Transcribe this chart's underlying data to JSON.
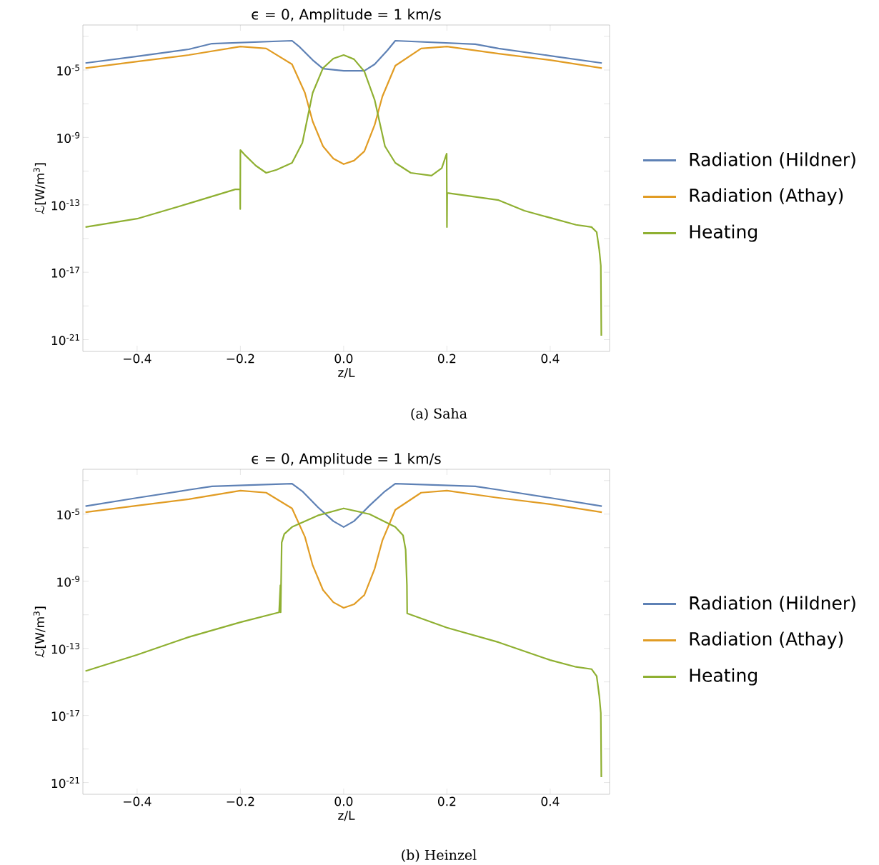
{
  "chart_data": [
    {
      "type": "line",
      "title": "ϵ = 0, Amplitude = 1 km/s",
      "xlabel": "z/L",
      "ylabel": "ℒ[W/m$^{3}$]",
      "log": "y",
      "legend": "right",
      "xlim": [
        -0.505,
        0.515
      ],
      "ylim": [
        2e-22,
        0.0047
      ],
      "xticks": [
        {
          "value": -0.4,
          "label": "−0.4"
        },
        {
          "value": -0.2,
          "label": "−0.2"
        },
        {
          "value": 0,
          "label": "0.0"
        },
        {
          "value": 0.2,
          "label": "0.2"
        },
        {
          "value": 0.4,
          "label": "0.4"
        }
      ],
      "yticks": [
        {
          "value": 1e-21,
          "label": "10$^{-21}$"
        },
        {
          "value": 1e-19,
          "label": null
        },
        {
          "value": 1e-17,
          "label": "10$^{-17}$"
        },
        {
          "value": 1e-15,
          "label": null
        },
        {
          "value": 1e-13,
          "label": "10$^{-13}$"
        },
        {
          "value": 1e-11,
          "label": null
        },
        {
          "value": 1e-09,
          "label": "10$^{-9}$"
        },
        {
          "value": 1e-07,
          "label": null
        },
        {
          "value": 1e-05,
          "label": "10$^{-5}$"
        },
        {
          "value": 0.001,
          "label": null
        }
      ],
      "annotations": [
        "(a) Saha"
      ],
      "series": [
        {
          "name": "Radiation (Hildner)",
          "color": "#5e81b5",
          "x": [
            -0.5,
            -0.4,
            -0.3,
            -0.255,
            -0.1,
            -0.085,
            -0.06,
            -0.04,
            0,
            0.04,
            0.06,
            0.085,
            0.1,
            0.255,
            0.3,
            0.4,
            0.5
          ],
          "values": [
            2.6e-05,
            6.5e-05,
            0.00017,
            0.00037,
            0.00055,
            0.00023,
            3.9e-05,
            1.2e-05,
            9e-06,
            9e-06,
            2.2e-05,
            0.00015,
            0.00055,
            0.00034,
            0.00019,
            7e-05,
            2.6e-05
          ]
        },
        {
          "name": "Radiation (Athay)",
          "color": "#e19c24",
          "x": [
            -0.5,
            -0.4,
            -0.3,
            -0.2,
            -0.15,
            -0.1,
            -0.075,
            -0.06,
            -0.04,
            -0.02,
            0,
            0.02,
            0.04,
            0.06,
            0.075,
            0.1,
            0.15,
            0.2,
            0.3,
            0.4,
            0.5
          ],
          "values": [
            1.3e-05,
            3.2e-05,
            7.8e-05,
            0.00025,
            0.00019,
            2.2e-05,
            4.4e-07,
            8.9e-09,
            3e-10,
            5.6e-11,
            2.6e-11,
            4.2e-11,
            1.5e-10,
            5.5e-09,
            2.7e-07,
            1.8e-05,
            0.00019,
            0.00025,
            9.3e-05,
            3.9e-05,
            1.3e-05
          ]
        },
        {
          "name": "Heating",
          "color": "#8fb032",
          "x": [
            -0.5,
            -0.4,
            -0.3,
            -0.21,
            -0.2005,
            -0.2003,
            -0.2,
            -0.19,
            -0.17,
            -0.15,
            -0.13,
            -0.1,
            -0.08,
            -0.06,
            -0.04,
            -0.02,
            0,
            0.02,
            0.04,
            0.06,
            0.08,
            0.1,
            0.13,
            0.17,
            0.19,
            0.1995,
            0.2,
            0.2005,
            0.3,
            0.35,
            0.4,
            0.45,
            0.48,
            0.49,
            0.495,
            0.498,
            0.499
          ],
          "values": [
            4.8e-15,
            1.5e-14,
            1.2e-13,
            8.3e-13,
            8.3e-13,
            5.6e-14,
            1.8e-10,
            8.3e-11,
            2.1e-11,
            7.9e-12,
            1.2e-11,
            3.1e-11,
            4.8e-10,
            4.4e-07,
            1.3e-05,
            4.8e-05,
            7.8e-05,
            4.4e-05,
            8.3e-06,
            1.7e-07,
            3e-10,
            3.1e-11,
            7.9e-12,
            5.4e-12,
            1.5e-11,
            1.1e-10,
            4.8e-15,
            5.1e-13,
            1.9e-13,
            4.5e-14,
            1.7e-14,
            6.5e-15,
            4.8e-15,
            2.4e-15,
            2.1e-16,
            2.5e-17,
            1.7e-21
          ]
        }
      ]
    },
    {
      "type": "line",
      "title": "ϵ = 0, Amplitude = 1 km/s",
      "xlabel": "z/L",
      "ylabel": "ℒ[W/m$^{3}$]",
      "log": "y",
      "legend": "right",
      "xlim": [
        -0.505,
        0.515
      ],
      "ylim": [
        2e-22,
        0.0047
      ],
      "xticks": [
        {
          "value": -0.4,
          "label": "−0.4"
        },
        {
          "value": -0.2,
          "label": "−0.2"
        },
        {
          "value": 0,
          "label": "0.0"
        },
        {
          "value": 0.2,
          "label": "0.2"
        },
        {
          "value": 0.4,
          "label": "0.4"
        }
      ],
      "yticks": [
        {
          "value": 1e-21,
          "label": "10$^{-21}$"
        },
        {
          "value": 1e-19,
          "label": null
        },
        {
          "value": 1e-17,
          "label": "10$^{-17}$"
        },
        {
          "value": 1e-15,
          "label": null
        },
        {
          "value": 1e-13,
          "label": "10$^{-13}$"
        },
        {
          "value": 1e-11,
          "label": null
        },
        {
          "value": 1e-09,
          "label": "10$^{-9}$"
        },
        {
          "value": 1e-07,
          "label": null
        },
        {
          "value": 1e-05,
          "label": "10$^{-5}$"
        },
        {
          "value": 0.001,
          "label": null
        }
      ],
      "annotations": [
        "(b) Heinzel"
      ],
      "series": [
        {
          "name": "Radiation (Hildner)",
          "color": "#5e81b5",
          "x": [
            -0.5,
            -0.4,
            -0.3,
            -0.255,
            -0.1,
            -0.08,
            -0.05,
            -0.02,
            0,
            0.02,
            0.05,
            0.08,
            0.1,
            0.255,
            0.3,
            0.4,
            0.5
          ],
          "values": [
            3e-05,
            9.3e-05,
            0.00028,
            0.00045,
            0.00066,
            0.00023,
            2.6e-05,
            3.8e-06,
            1.7e-06,
            3.8e-06,
            3.2e-05,
            0.00023,
            0.00066,
            0.00045,
            0.00028,
            9.3e-05,
            3e-05
          ]
        },
        {
          "name": "Radiation (Athay)",
          "color": "#e19c24",
          "x": [
            -0.5,
            -0.4,
            -0.3,
            -0.2,
            -0.15,
            -0.1,
            -0.075,
            -0.06,
            -0.04,
            -0.02,
            0,
            0.02,
            0.04,
            0.06,
            0.075,
            0.1,
            0.15,
            0.2,
            0.3,
            0.4,
            0.5
          ],
          "values": [
            1.3e-05,
            3.2e-05,
            7.8e-05,
            0.00025,
            0.00019,
            2.2e-05,
            4.4e-07,
            8.9e-09,
            3e-10,
            5.6e-11,
            2.6e-11,
            4.2e-11,
            1.5e-10,
            5.5e-09,
            2.7e-07,
            1.8e-05,
            0.00019,
            0.00025,
            9.3e-05,
            3.9e-05,
            1.3e-05
          ]
        },
        {
          "name": "Heating",
          "color": "#8fb032",
          "x": [
            -0.5,
            -0.4,
            -0.3,
            -0.2,
            -0.125,
            -0.1225,
            -0.122,
            -0.12,
            -0.115,
            -0.1,
            -0.05,
            0,
            0.05,
            0.1,
            0.115,
            0.12,
            0.1225,
            0.123,
            0.2,
            0.3,
            0.4,
            0.45,
            0.48,
            0.49,
            0.495,
            0.498,
            0.499
          ],
          "values": [
            4.4e-15,
            4.1e-14,
            4.7e-13,
            3.6e-12,
            1.4e-11,
            5.8e-10,
            1.4e-11,
            2e-07,
            6.5e-07,
            1.7e-06,
            8.3e-06,
            2.2e-05,
            1e-05,
            1.7e-06,
            5.4e-07,
            7.6e-08,
            5.8e-10,
            1.2e-11,
            1.7e-12,
            2.3e-13,
            2e-14,
            7.8e-15,
            5.8e-15,
            2.2e-15,
            1.5e-16,
            1.4e-17,
            2.1e-21
          ]
        }
      ]
    }
  ]
}
